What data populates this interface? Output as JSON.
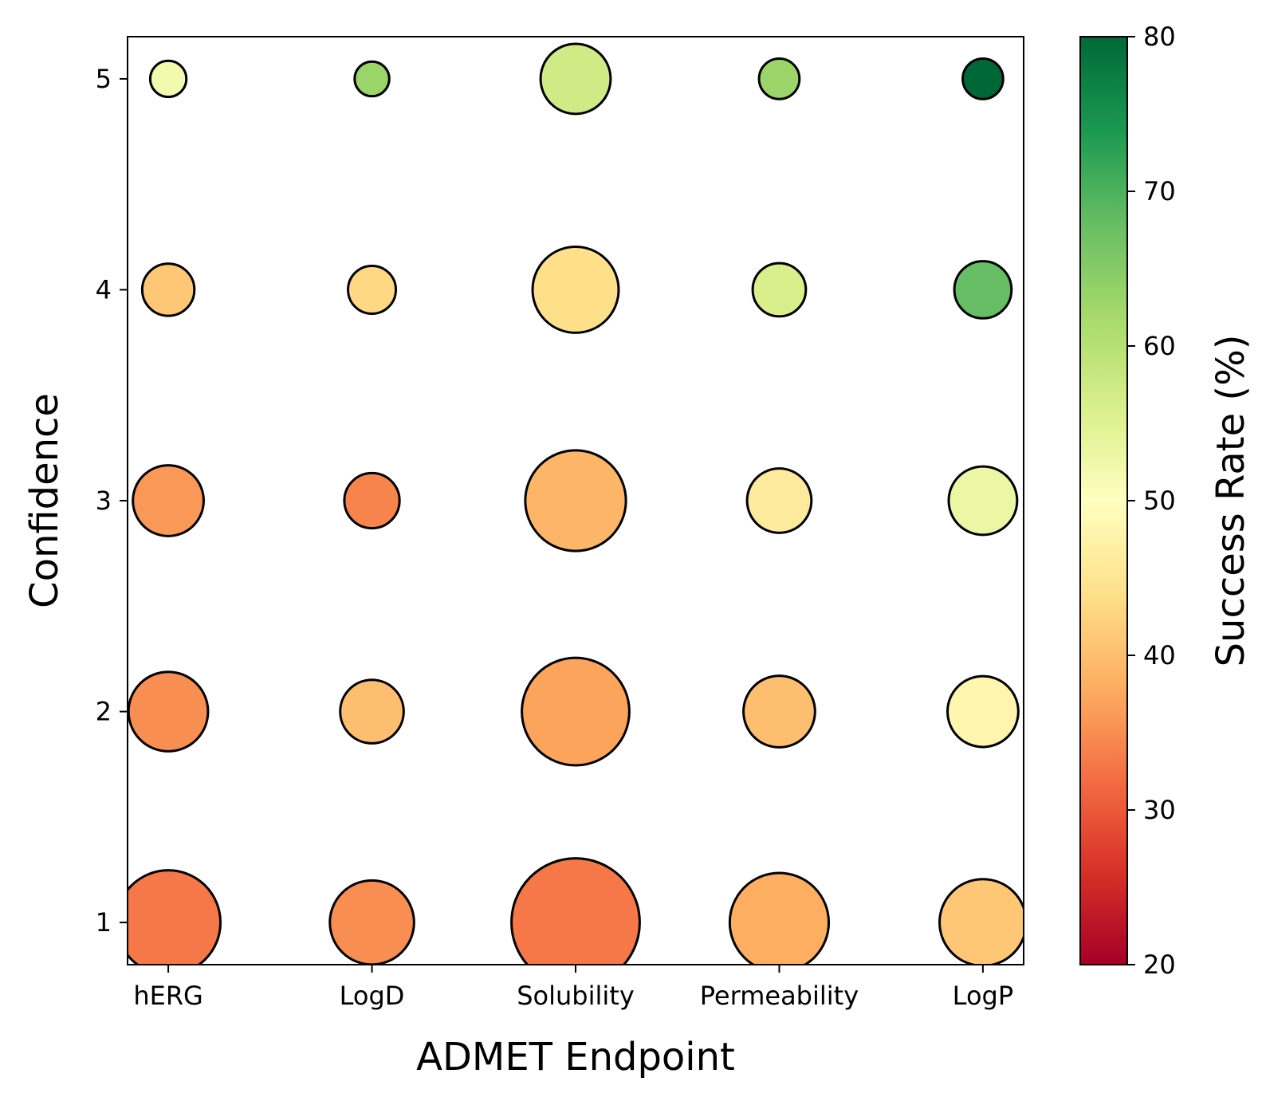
{
  "chart_data": {
    "type": "scatter",
    "subtype": "bubble",
    "xlabel": "ADMET Endpoint",
    "ylabel": "Confidence",
    "categories": [
      "hERG",
      "LogD",
      "Solubility",
      "Permeability",
      "LogP"
    ],
    "y_ticks": [
      1,
      2,
      3,
      4,
      5
    ],
    "ylim": [
      0.8,
      5.2
    ],
    "grid": false,
    "colorbar": {
      "label": "Success Rate (%)",
      "colormap": "RdYlGn",
      "range": [
        20,
        80
      ],
      "ticks": [
        20,
        30,
        40,
        50,
        60,
        70,
        80
      ]
    },
    "size_variable": "count (relative, not labeled)",
    "points": [
      {
        "x": "hERG",
        "y": 1,
        "success_rate": 33,
        "size": 1000
      },
      {
        "x": "hERG",
        "y": 2,
        "success_rate": 35,
        "size": 580
      },
      {
        "x": "hERG",
        "y": 3,
        "success_rate": 36,
        "size": 460
      },
      {
        "x": "hERG",
        "y": 4,
        "success_rate": 41,
        "size": 250
      },
      {
        "x": "hERG",
        "y": 5,
        "success_rate": 52,
        "size": 120
      },
      {
        "x": "LogD",
        "y": 1,
        "success_rate": 35,
        "size": 650
      },
      {
        "x": "LogD",
        "y": 2,
        "success_rate": 40,
        "size": 370
      },
      {
        "x": "LogD",
        "y": 3,
        "success_rate": 34,
        "size": 280
      },
      {
        "x": "LogD",
        "y": 4,
        "success_rate": 43,
        "size": 210
      },
      {
        "x": "LogD",
        "y": 5,
        "success_rate": 63,
        "size": 110
      },
      {
        "x": "Solubility",
        "y": 1,
        "success_rate": 33,
        "size": 1510
      },
      {
        "x": "Solubility",
        "y": 2,
        "success_rate": 37,
        "size": 1060
      },
      {
        "x": "Solubility",
        "y": 3,
        "success_rate": 39,
        "size": 930
      },
      {
        "x": "Solubility",
        "y": 4,
        "success_rate": 44,
        "size": 680
      },
      {
        "x": "Solubility",
        "y": 5,
        "success_rate": 57,
        "size": 450
      },
      {
        "x": "Permeability",
        "y": 1,
        "success_rate": 38,
        "size": 900
      },
      {
        "x": "Permeability",
        "y": 2,
        "success_rate": 40,
        "size": 470
      },
      {
        "x": "Permeability",
        "y": 3,
        "success_rate": 46,
        "size": 380
      },
      {
        "x": "Permeability",
        "y": 4,
        "success_rate": 56,
        "size": 260
      },
      {
        "x": "Permeability",
        "y": 5,
        "success_rate": 63,
        "size": 150
      },
      {
        "x": "LogP",
        "y": 1,
        "success_rate": 41,
        "size": 690
      },
      {
        "x": "LogP",
        "y": 2,
        "success_rate": 48,
        "size": 460
      },
      {
        "x": "LogP",
        "y": 3,
        "success_rate": 53,
        "size": 430
      },
      {
        "x": "LogP",
        "y": 4,
        "success_rate": 68,
        "size": 300
      },
      {
        "x": "LogP",
        "y": 5,
        "success_rate": 80,
        "size": 150
      }
    ]
  }
}
